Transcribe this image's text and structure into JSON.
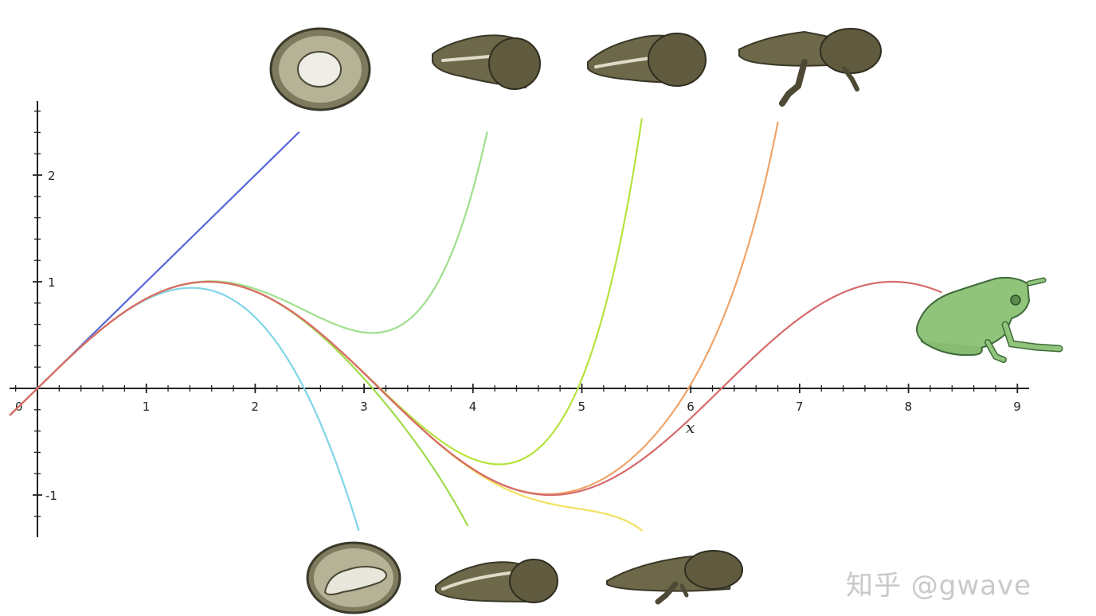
{
  "chart_data": {
    "type": "line",
    "title": "",
    "xlabel": "x",
    "ylabel": "",
    "xlim": [
      -0.25,
      9.15
    ],
    "ylim": [
      -1.4,
      2.7
    ],
    "x_ticks": [
      "0",
      "1",
      "2",
      "3",
      "4",
      "5",
      "6",
      "7",
      "8",
      "9"
    ],
    "y_ticks": [
      "2",
      "1",
      "-1"
    ],
    "grid": false,
    "legend": "none",
    "series": [
      {
        "color": "#5566d8",
        "terms": 1,
        "x_range": [
          -0.25,
          2.4
        ]
      },
      {
        "color": "#7fd6e6",
        "terms": 2,
        "x_range": [
          -0.25,
          2.95
        ]
      },
      {
        "color": "#9ee08c",
        "terms": 3,
        "x_range": [
          -0.25,
          4.13
        ]
      },
      {
        "color": "#9fdc4a",
        "terms": 4,
        "x_range": [
          -0.25,
          3.95
        ]
      },
      {
        "color": "#b6e33c",
        "terms": 5,
        "x_range": [
          -0.25,
          5.55
        ]
      },
      {
        "color": "#f2e060",
        "terms": 6,
        "x_range": [
          -0.25,
          5.55
        ]
      },
      {
        "color": "#f0a468",
        "terms": 7,
        "x_range": [
          -0.25,
          6.8
        ]
      },
      {
        "color": "#d66a6a",
        "terms": "sin",
        "x_range": [
          -0.25,
          8.3
        ]
      }
    ],
    "annotations": [
      "frog-egg",
      "tadpole-stages",
      "frog"
    ]
  },
  "watermark": "知乎 @gwave",
  "colors": {
    "creature_dark": "#5f5a3e",
    "creature_mid": "#7b7656",
    "frog_green": "#8fc47a",
    "frog_outline": "#3f6a3a"
  }
}
